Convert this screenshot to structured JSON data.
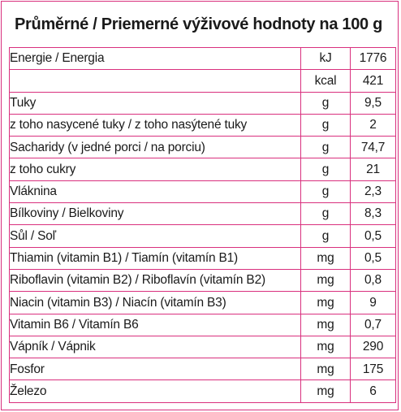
{
  "title": "Průměrné / Priemerné výživové hodnoty na 100 g",
  "rows": [
    {
      "name": "Energie / Energia",
      "unit": "kJ",
      "value": "1776"
    },
    {
      "name": "",
      "unit": "kcal",
      "value": "421"
    },
    {
      "name": "Tuky",
      "unit": "g",
      "value": "9,5"
    },
    {
      "name": "z toho nasycené tuky / z toho nasýtené tuky",
      "unit": "g",
      "value": "2"
    },
    {
      "name": "Sacharidy (v jedné porci / na porciu)",
      "unit": "g",
      "value": "74,7"
    },
    {
      "name": "z toho cukry",
      "unit": "g",
      "value": "21"
    },
    {
      "name": "Vláknina",
      "unit": "g",
      "value": "2,3"
    },
    {
      "name": "Bílkoviny / Bielkoviny",
      "unit": "g",
      "value": "8,3"
    },
    {
      "name": "Sůl / Soľ",
      "unit": "g",
      "value": "0,5"
    },
    {
      "name": "Thiamin (vitamin B1) / Tiamín (vitamín B1)",
      "unit": "mg",
      "value": "0,5"
    },
    {
      "name": "Riboflavin (vitamin B2) / Riboflavín (vitamín B2)",
      "unit": "mg",
      "value": "0,8"
    },
    {
      "name": "Niacin (vitamin B3) / Niacín (vitamín B3)",
      "unit": "mg",
      "value": "9"
    },
    {
      "name": "Vitamin B6 / Vitamín B6",
      "unit": "mg",
      "value": "0,7"
    },
    {
      "name": "Vápník / Vápnik",
      "unit": "mg",
      "value": "290"
    },
    {
      "name": "Fosfor",
      "unit": "mg",
      "value": "175"
    },
    {
      "name": "Železo",
      "unit": "mg",
      "value": "6"
    }
  ],
  "colors": {
    "border": "#d9307e",
    "text": "#1a1a1a"
  }
}
